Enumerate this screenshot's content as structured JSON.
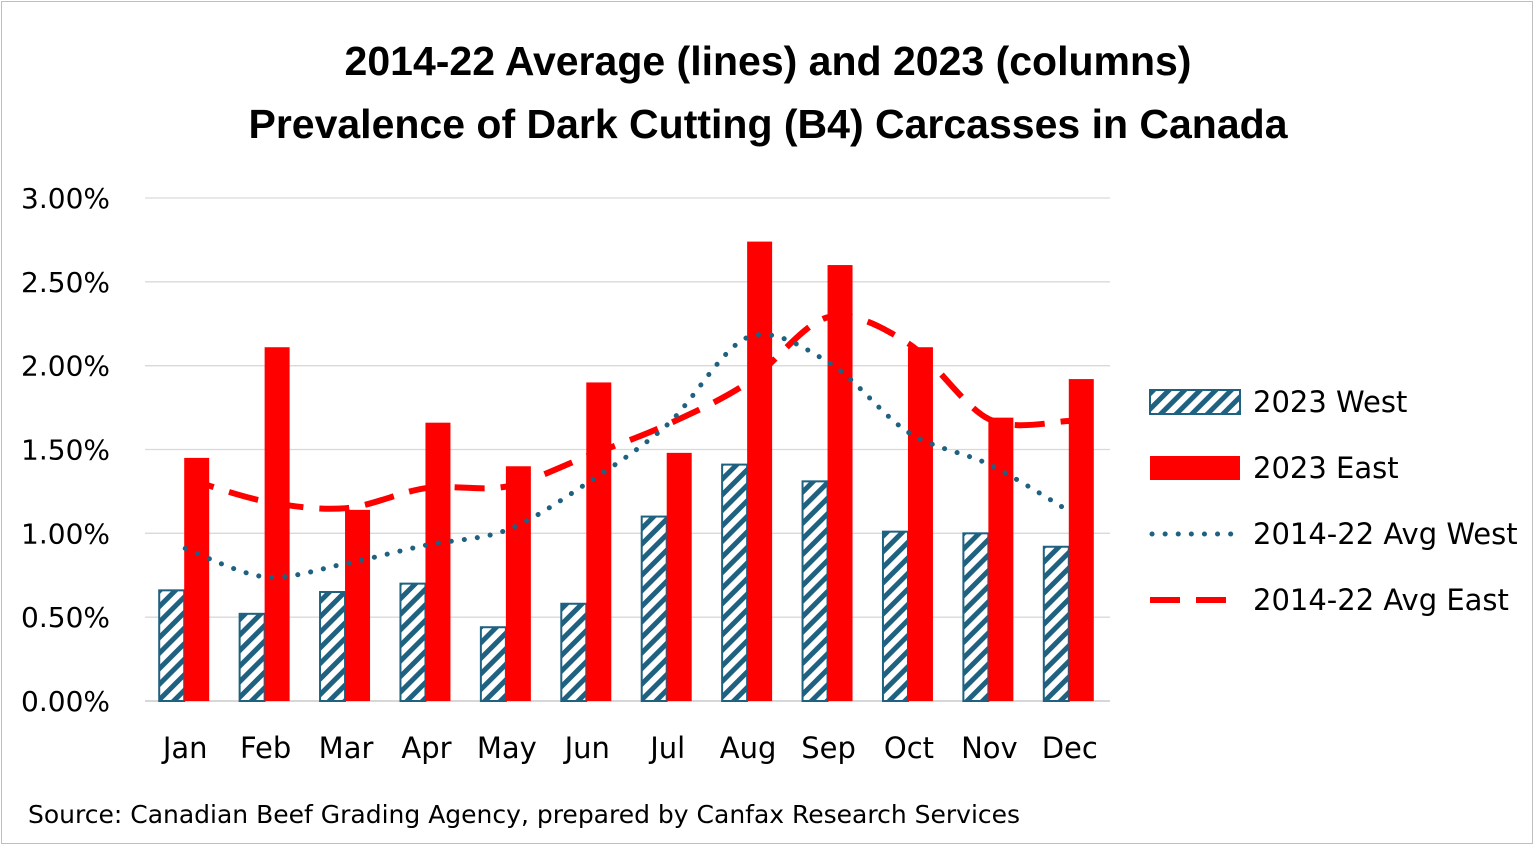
{
  "chart_data": {
    "type": "bar",
    "title_line1": "2014-22 Average (lines) and 2023 (columns)",
    "title_line2": "Prevalence of Dark Cutting (B4) Carcasses in Canada",
    "source": "Source: Canadian Beef Grading Agency, prepared by Canfax Research Services",
    "categories": [
      "Jan",
      "Feb",
      "Mar",
      "Apr",
      "May",
      "Jun",
      "Jul",
      "Aug",
      "Sep",
      "Oct",
      "Nov",
      "Dec"
    ],
    "ylim": [
      0,
      3.0
    ],
    "yticks": [
      "0.00%",
      "0.50%",
      "1.00%",
      "1.50%",
      "2.00%",
      "2.50%",
      "3.00%"
    ],
    "grid": true,
    "legend_position": "right",
    "series": [
      {
        "name": "2023 West",
        "kind": "bar",
        "style": "hatched",
        "color": "#1f6180",
        "values": [
          0.66,
          0.52,
          0.65,
          0.7,
          0.44,
          0.58,
          1.1,
          1.41,
          1.31,
          1.01,
          1.0,
          0.92
        ]
      },
      {
        "name": "2023 East",
        "kind": "bar",
        "style": "solid",
        "color": "#ff0000",
        "values": [
          1.45,
          2.11,
          1.14,
          1.66,
          1.4,
          1.9,
          1.48,
          2.74,
          2.6,
          2.11,
          1.69,
          1.92
        ]
      },
      {
        "name": "2014-22 Avg West",
        "kind": "line",
        "style": "dotted",
        "color": "#1f6180",
        "values": [
          0.91,
          0.74,
          0.82,
          0.93,
          1.02,
          1.3,
          1.65,
          2.17,
          2.02,
          1.6,
          1.41,
          1.13
        ]
      },
      {
        "name": "2014-22 Avg East",
        "kind": "line",
        "style": "dashed",
        "color": "#ff0000",
        "values": [
          1.33,
          1.19,
          1.15,
          1.27,
          1.28,
          1.46,
          1.65,
          1.9,
          2.29,
          2.13,
          1.68,
          1.67
        ]
      }
    ]
  }
}
